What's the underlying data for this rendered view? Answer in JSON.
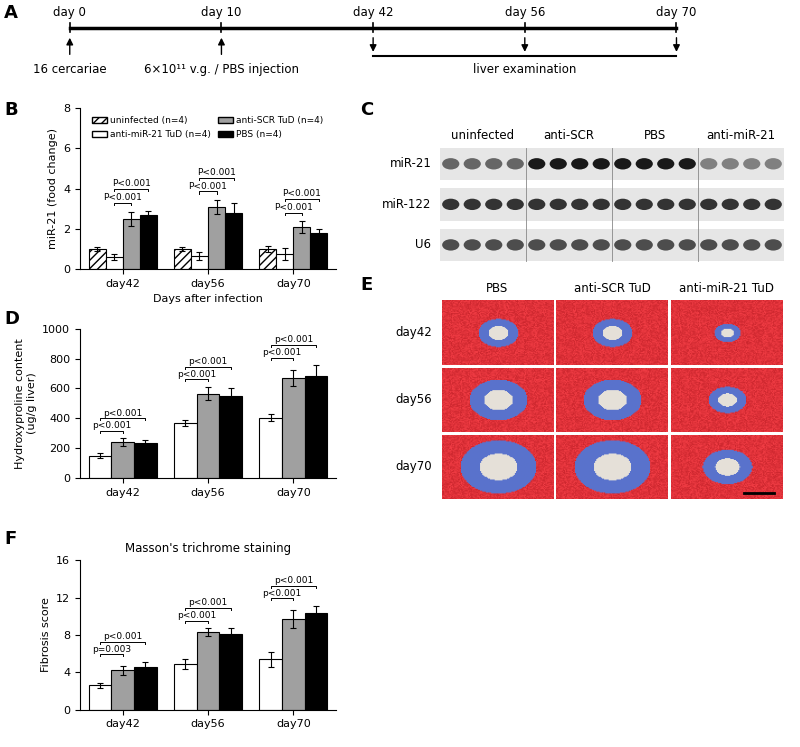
{
  "timeline": {
    "panel": "A",
    "points": [
      {
        "label": "day 0",
        "event": "16 cercariae"
      },
      {
        "label": "day 10",
        "event": "6×10¹¹ v.g. / PBS injection"
      },
      {
        "label": "day 42"
      },
      {
        "label": "day 56"
      },
      {
        "label": "day 70"
      }
    ],
    "span": {
      "from": "day 42",
      "to": "day 70",
      "label": "liver examination"
    }
  },
  "blot": {
    "panel": "C",
    "groups": [
      {
        "label": "uninfected",
        "lanes": 4
      },
      {
        "label": "anti-SCR",
        "lanes": 4
      },
      {
        "label": "PBS",
        "lanes": 4
      },
      {
        "label": "anti-miR-21",
        "lanes": 4
      }
    ],
    "rows": [
      {
        "label": "miR-21",
        "intensity": [
          0.6,
          0.9,
          0.9,
          0.5
        ]
      },
      {
        "label": "miR-122",
        "intensity": [
          0.8,
          0.8,
          0.8,
          0.8
        ]
      },
      {
        "label": "U6",
        "intensity": [
          0.7,
          0.7,
          0.7,
          0.7
        ]
      }
    ]
  },
  "histology": {
    "panel": "E",
    "columns": [
      "PBS",
      "anti-SCR TuD",
      "anti-miR-21 TuD"
    ],
    "rows": [
      "day42",
      "day56",
      "day70"
    ]
  },
  "chart_data": [
    {
      "panel": "B",
      "type": "bar",
      "x_label": "Days after infection",
      "y_label": "miR-21 (food change)",
      "categories": [
        "day42",
        "day56",
        "day70"
      ],
      "legend": "upper center",
      "series": [
        {
          "name": "uninfected (n=4)",
          "color": "#ffffff",
          "line_style": "hatched",
          "values": [
            1.0,
            1.0,
            1.0
          ],
          "errors": [
            0.1,
            0.1,
            0.15
          ]
        },
        {
          "name": "anti-miR-21 TuD (n=4)",
          "color": "#ffffff",
          "line_style": "solid",
          "values": [
            0.6,
            0.65,
            0.75
          ],
          "errors": [
            0.15,
            0.2,
            0.3
          ]
        },
        {
          "name": "anti-SCR TuD (n=4)",
          "color": "#a0a0a0",
          "line_style": "solid",
          "values": [
            2.5,
            3.1,
            2.1
          ],
          "errors": [
            0.35,
            0.35,
            0.3
          ]
        },
        {
          "name": "PBS (n=4)",
          "color": "#000000",
          "line_style": "solid",
          "values": [
            2.7,
            2.8,
            1.8
          ],
          "errors": [
            0.2,
            0.5,
            0.2
          ]
        }
      ],
      "ylim": [
        0,
        8
      ],
      "yticks": [
        0,
        2,
        4,
        6,
        8
      ],
      "comparisons": [
        {
          "category": "day42",
          "from": "anti-miR-21 TuD (n=4)",
          "to": "anti-SCR TuD (n=4)",
          "label": "P<0.001"
        },
        {
          "category": "day42",
          "from": "anti-miR-21 TuD (n=4)",
          "to": "PBS (n=4)",
          "label": "P<0.001"
        },
        {
          "category": "day56",
          "from": "anti-miR-21 TuD (n=4)",
          "to": "anti-SCR TuD (n=4)",
          "label": "P<0.001"
        },
        {
          "category": "day56",
          "from": "anti-miR-21 TuD (n=4)",
          "to": "PBS (n=4)",
          "label": "P<0.001"
        },
        {
          "category": "day70",
          "from": "anti-miR-21 TuD (n=4)",
          "to": "anti-SCR TuD (n=4)",
          "label": "P<0.001"
        },
        {
          "category": "day70",
          "from": "anti-miR-21 TuD (n=4)",
          "to": "PBS (n=4)",
          "label": "P<0.001"
        }
      ]
    },
    {
      "panel": "D",
      "type": "bar",
      "y_label": "Hydroxyproline content\n(ug/g liver)",
      "categories": [
        "day42",
        "day56",
        "day70"
      ],
      "series": [
        {
          "name": "anti-miR-21 TuD (n=4)",
          "color": "#ffffff",
          "line_style": "solid",
          "values": [
            150,
            370,
            405
          ],
          "errors": [
            15,
            20,
            25
          ]
        },
        {
          "name": "anti-SCR TuD (n=4)",
          "color": "#a0a0a0",
          "line_style": "solid",
          "values": [
            240,
            565,
            670
          ],
          "errors": [
            25,
            45,
            55
          ]
        },
        {
          "name": "PBS (n=4)",
          "color": "#000000",
          "line_style": "solid",
          "values": [
            235,
            550,
            685
          ],
          "errors": [
            20,
            55,
            70
          ]
        }
      ],
      "ylim": [
        0,
        1000
      ],
      "yticks": [
        0,
        200,
        400,
        600,
        800,
        1000
      ],
      "comparisons": [
        {
          "category": "day42",
          "from": "anti-miR-21 TuD (n=4)",
          "to": "anti-SCR TuD (n=4)",
          "label": "p<0.001"
        },
        {
          "category": "day42",
          "from": "anti-miR-21 TuD (n=4)",
          "to": "PBS (n=4)",
          "label": "p<0.001"
        },
        {
          "category": "day56",
          "from": "anti-miR-21 TuD (n=4)",
          "to": "anti-SCR TuD (n=4)",
          "label": "p<0.001"
        },
        {
          "category": "day56",
          "from": "anti-miR-21 TuD (n=4)",
          "to": "PBS (n=4)",
          "label": "p<0.001"
        },
        {
          "category": "day70",
          "from": "anti-miR-21 TuD (n=4)",
          "to": "anti-SCR TuD (n=4)",
          "label": "p<0.001"
        },
        {
          "category": "day70",
          "from": "anti-miR-21 TuD (n=4)",
          "to": "PBS (n=4)",
          "label": "p<0.001"
        }
      ]
    },
    {
      "panel": "F",
      "type": "bar",
      "title": "Masson's trichrome staining",
      "y_label": "Fibrosis score",
      "categories": [
        "day42",
        "day56",
        "day70"
      ],
      "series": [
        {
          "name": "anti-miR-21 TuD (n=4)",
          "color": "#ffffff",
          "line_style": "solid",
          "values": [
            2.6,
            4.9,
            5.4
          ],
          "errors": [
            0.3,
            0.5,
            0.8
          ]
        },
        {
          "name": "anti-SCR TuD (n=4)",
          "color": "#a0a0a0",
          "line_style": "solid",
          "values": [
            4.2,
            8.3,
            9.7
          ],
          "errors": [
            0.5,
            0.4,
            1.0
          ]
        },
        {
          "name": "PBS (n=4)",
          "color": "#000000",
          "line_style": "solid",
          "values": [
            4.6,
            8.1,
            10.3
          ],
          "errors": [
            0.5,
            0.6,
            0.8
          ]
        }
      ],
      "ylim": [
        0,
        16
      ],
      "yticks": [
        0,
        4,
        8,
        12,
        16
      ],
      "comparisons": [
        {
          "category": "day42",
          "from": "anti-miR-21 TuD (n=4)",
          "to": "anti-SCR TuD (n=4)",
          "label": "p=0.003"
        },
        {
          "category": "day42",
          "from": "anti-miR-21 TuD (n=4)",
          "to": "PBS (n=4)",
          "label": "p<0.001"
        },
        {
          "category": "day56",
          "from": "anti-miR-21 TuD (n=4)",
          "to": "anti-SCR TuD (n=4)",
          "label": "p<0.001"
        },
        {
          "category": "day56",
          "from": "anti-miR-21 TuD (n=4)",
          "to": "PBS (n=4)",
          "label": "p<0.001"
        },
        {
          "category": "day70",
          "from": "anti-miR-21 TuD (n=4)",
          "to": "anti-SCR TuD (n=4)",
          "label": "p<0.001"
        },
        {
          "category": "day70",
          "from": "anti-miR-21 TuD (n=4)",
          "to": "PBS (n=4)",
          "label": "p<0.001"
        }
      ]
    }
  ]
}
